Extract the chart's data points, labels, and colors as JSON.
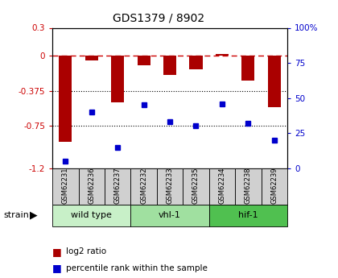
{
  "title": "GDS1379 / 8902",
  "samples": [
    "GSM62231",
    "GSM62236",
    "GSM62237",
    "GSM62232",
    "GSM62233",
    "GSM62235",
    "GSM62234",
    "GSM62238",
    "GSM62239"
  ],
  "log2_ratio": [
    -0.92,
    -0.05,
    -0.5,
    -0.1,
    -0.2,
    -0.14,
    0.02,
    -0.26,
    -0.55
  ],
  "percentile": [
    5,
    40,
    15,
    45,
    33,
    30,
    46,
    32,
    20
  ],
  "groups": [
    {
      "label": "wild type",
      "start": 0,
      "end": 3,
      "color": "#c8f0c8"
    },
    {
      "label": "vhl-1",
      "start": 3,
      "end": 6,
      "color": "#a0e0a0"
    },
    {
      "label": "hif-1",
      "start": 6,
      "end": 9,
      "color": "#50c050"
    }
  ],
  "ylim_left": [
    -1.2,
    0.3
  ],
  "ylim_right": [
    0,
    100
  ],
  "yticks_left": [
    -1.2,
    -0.75,
    -0.375,
    0,
    0.3
  ],
  "yticks_right": [
    0,
    25,
    50,
    75,
    100
  ],
  "bar_color": "#aa0000",
  "dot_color": "#0000cc",
  "hline_color": "#cc0000",
  "grid_color": "#000000",
  "bg_color": "#ffffff",
  "plot_bg": "#ffffff",
  "legend_items": [
    "log2 ratio",
    "percentile rank within the sample"
  ]
}
